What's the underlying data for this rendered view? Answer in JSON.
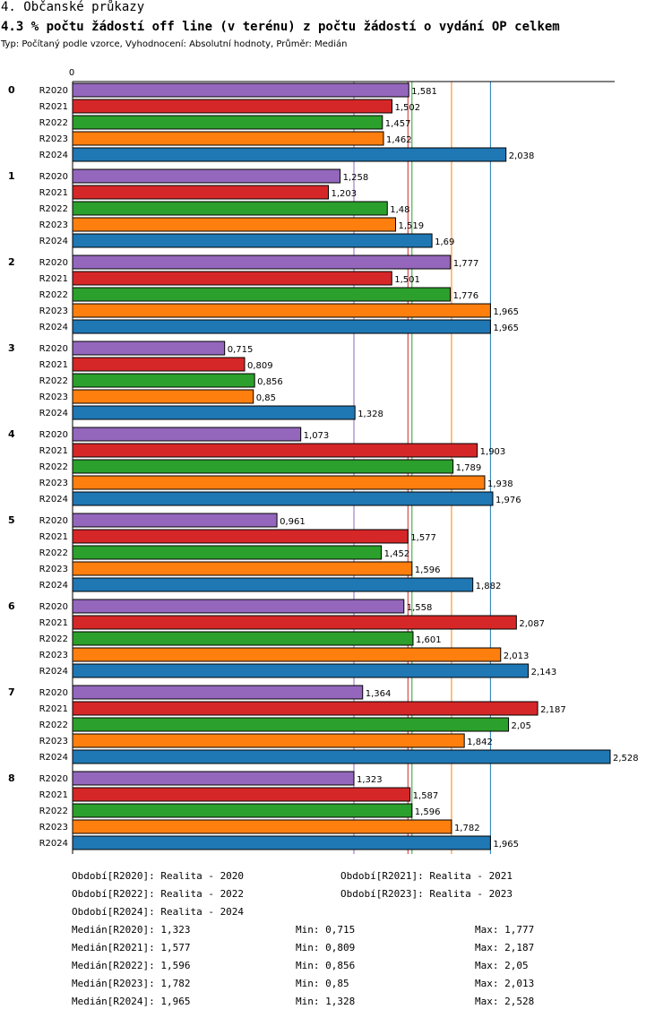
{
  "header": {
    "section": "4. Občanské průkazy",
    "title": "4.3 % počtu žádostí off line (v terénu) z počtu žádostí o vydání OP celkem",
    "subtitle": "Typ: Počítaný podle vzorce, Vyhodnocení: Absolutní hodnoty, Průměr: Medián"
  },
  "chart_data": {
    "type": "bar",
    "orientation": "horizontal",
    "title": "4.3 % počtu žádostí off line (v terénu) z počtu žádostí o vydání OP celkem",
    "axis_zero_label": "0",
    "xlim": [
      0,
      2.528
    ],
    "categories": [
      "0",
      "1",
      "2",
      "3",
      "4",
      "5",
      "6",
      "7",
      "8"
    ],
    "series": [
      {
        "name": "R2020",
        "color": "#9467bd",
        "values": [
          1.581,
          1.258,
          1.777,
          0.715,
          1.073,
          0.961,
          1.558,
          1.364,
          1.323
        ],
        "labels": [
          "1,581",
          "1,258",
          "1,777",
          "0,715",
          "1,073",
          "0,961",
          "1,558",
          "1,364",
          "1,323"
        ]
      },
      {
        "name": "R2021",
        "color": "#d62728",
        "values": [
          1.502,
          1.203,
          1.501,
          0.809,
          1.903,
          1.577,
          2.087,
          2.187,
          1.587
        ],
        "labels": [
          "1,502",
          "1,203",
          "1,501",
          "0,809",
          "1,903",
          "1,577",
          "2,087",
          "2,187",
          "1,587"
        ]
      },
      {
        "name": "R2022",
        "color": "#2ca02c",
        "values": [
          1.457,
          1.48,
          1.776,
          0.856,
          1.789,
          1.452,
          1.601,
          2.05,
          1.596
        ],
        "labels": [
          "1,457",
          "1,48",
          "1,776",
          "0,856",
          "1,789",
          "1,452",
          "1,601",
          "2,05",
          "1,596"
        ]
      },
      {
        "name": "R2023",
        "color": "#ff7f0e",
        "values": [
          1.462,
          1.519,
          1.965,
          0.85,
          1.938,
          1.596,
          2.013,
          1.842,
          1.782
        ],
        "labels": [
          "1,462",
          "1,519",
          "1,965",
          "0,85",
          "1,938",
          "1,596",
          "2,013",
          "1,842",
          "1,782"
        ]
      },
      {
        "name": "R2024",
        "color": "#1f77b4",
        "values": [
          2.038,
          1.69,
          1.965,
          1.328,
          1.976,
          1.882,
          2.143,
          2.528,
          1.965
        ],
        "labels": [
          "2,038",
          "1,69",
          "1,965",
          "1,328",
          "1,976",
          "1,882",
          "2,143",
          "2,528",
          "1,965"
        ]
      }
    ],
    "median_lines": [
      {
        "series": "R2020",
        "value": 1.323
      },
      {
        "series": "R2021",
        "value": 1.577
      },
      {
        "series": "R2022",
        "value": 1.596
      },
      {
        "series": "R2023",
        "value": 1.782
      },
      {
        "series": "R2024",
        "value": 1.965
      }
    ]
  },
  "legend": [
    "Období[R2020]: Realita - 2020",
    "Období[R2021]: Realita - 2021",
    "Období[R2022]: Realita - 2022",
    "Období[R2023]: Realita - 2023",
    "Období[R2024]: Realita - 2024"
  ],
  "stats": [
    {
      "median": "Medián[R2020]: 1,323",
      "min": "Min: 0,715",
      "max": "Max: 1,777"
    },
    {
      "median": "Medián[R2021]: 1,577",
      "min": "Min: 0,809",
      "max": "Max: 2,187"
    },
    {
      "median": "Medián[R2022]: 1,596",
      "min": "Min: 0,856",
      "max": "Max: 2,05"
    },
    {
      "median": "Medián[R2023]: 1,782",
      "min": "Min: 0,85",
      "max": "Max: 2,013"
    },
    {
      "median": "Medián[R2024]: 1,965",
      "min": "Min: 1,328",
      "max": "Max: 2,528"
    }
  ]
}
